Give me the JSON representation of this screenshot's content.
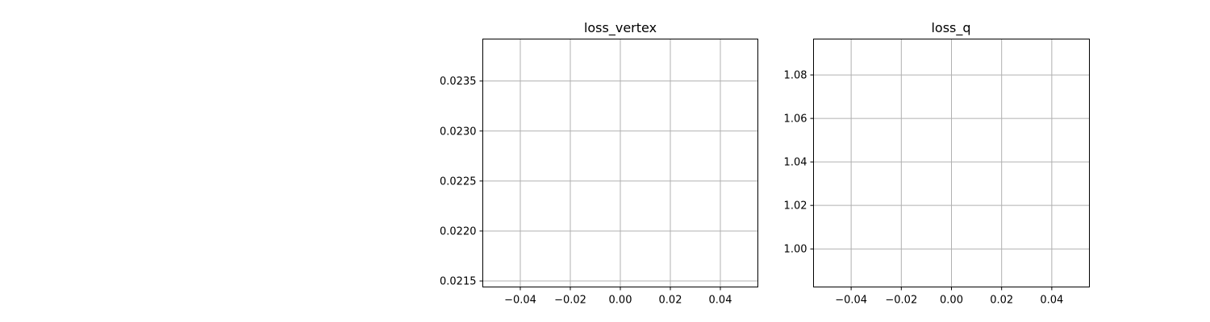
{
  "chart_data": [
    {
      "type": "line",
      "title": "loss_vertex",
      "xlabel": "",
      "ylabel": "",
      "series": [],
      "xlim": [
        -0.055,
        0.055
      ],
      "ylim": [
        0.02144,
        0.02392
      ],
      "xticks": [
        -0.04,
        -0.02,
        0.0,
        0.02,
        0.04
      ],
      "xtick_labels": [
        "−0.04",
        "−0.02",
        "0.00",
        "0.02",
        "0.04"
      ],
      "yticks": [
        0.0215,
        0.022,
        0.0225,
        0.023,
        0.0235
      ],
      "ytick_labels": [
        "0.0215",
        "0.0220",
        "0.0225",
        "0.0230",
        "0.0235"
      ],
      "grid": true
    },
    {
      "type": "line",
      "title": "loss_q",
      "xlabel": "",
      "ylabel": "",
      "series": [],
      "xlim": [
        -0.055,
        0.055
      ],
      "ylim": [
        0.9825,
        1.0965
      ],
      "xticks": [
        -0.04,
        -0.02,
        0.0,
        0.02,
        0.04
      ],
      "xtick_labels": [
        "−0.04",
        "−0.02",
        "0.00",
        "0.02",
        "0.04"
      ],
      "yticks": [
        1.0,
        1.02,
        1.04,
        1.06,
        1.08
      ],
      "ytick_labels": [
        "1.00",
        "1.02",
        "1.04",
        "1.06",
        "1.08"
      ],
      "grid": true
    }
  ],
  "colors": {
    "grid": "#b0b0b0",
    "axes": "#000000",
    "background": "#ffffff"
  }
}
